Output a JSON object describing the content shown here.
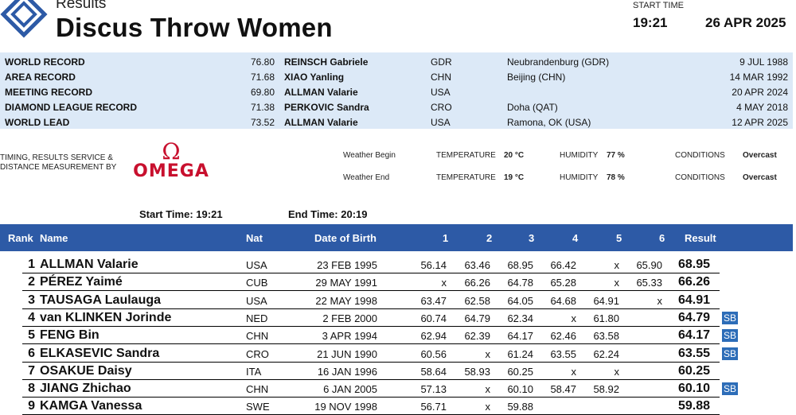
{
  "header": {
    "subtitle": "Results",
    "title": "Discus Throw Women",
    "start_time_label": "START TIME",
    "start_time": "19:21",
    "date": "26 APR 2025"
  },
  "records": [
    {
      "type": "WORLD RECORD",
      "mark": "76.80",
      "athlete": "REINSCH Gabriele",
      "nat": "GDR",
      "venue": "Neubrandenburg (GDR)",
      "date": "9 JUL 1988"
    },
    {
      "type": "AREA RECORD",
      "mark": "71.68",
      "athlete": "XIAO Yanling",
      "nat": "CHN",
      "venue": "Beijing (CHN)",
      "date": "14 MAR 1992"
    },
    {
      "type": "MEETING RECORD",
      "mark": "69.80",
      "athlete": "ALLMAN Valarie",
      "nat": "USA",
      "venue": "",
      "date": "20 APR 2024"
    },
    {
      "type": "DIAMOND LEAGUE RECORD",
      "mark": "71.38",
      "athlete": "PERKOVIC Sandra",
      "nat": "CRO",
      "venue": "Doha (QAT)",
      "date": "4 MAY 2018"
    },
    {
      "type": "WORLD LEAD",
      "mark": "73.52",
      "athlete": "ALLMAN Valarie",
      "nat": "USA",
      "venue": "Ramona, OK (USA)",
      "date": "12 APR 2025"
    }
  ],
  "timing": {
    "text_line1": "TIMING, RESULTS SERVICE &",
    "text_line2": "DISTANCE MEASUREMENT BY",
    "brand_symbol": "Ω",
    "brand_word": "OMEGA",
    "brand_color": "#c8102e"
  },
  "weather": {
    "begin": {
      "label": "Weather Begin",
      "temp_label": "TEMPERATURE",
      "temp": "20 °C",
      "hum_label": "HUMIDITY",
      "hum": "77 %",
      "cond_label": "CONDITIONS",
      "cond": "Overcast"
    },
    "end": {
      "label": "Weather End",
      "temp_label": "TEMPERATURE",
      "temp": "19 °C",
      "hum_label": "HUMIDITY",
      "hum": "78 %",
      "cond_label": "CONDITIONS",
      "cond": "Overcast"
    }
  },
  "times": {
    "start_label": "Start Time:",
    "start": "19:21",
    "end_label": "End Time:",
    "end": "20:19"
  },
  "columns": {
    "rank": "Rank",
    "name": "Name",
    "nat": "Nat",
    "dob": "Date of Birth",
    "a1": "1",
    "a2": "2",
    "a3": "3",
    "a4": "4",
    "a5": "5",
    "a6": "6",
    "result": "Result"
  },
  "results": [
    {
      "rank": "1",
      "name": "ALLMAN Valarie",
      "nat": "USA",
      "dob": "23 FEB 1995",
      "attempts": [
        "56.14",
        "63.46",
        "68.95",
        "66.42",
        "x",
        "65.90"
      ],
      "result": "68.95",
      "note": ""
    },
    {
      "rank": "2",
      "name": "PÉREZ Yaimé",
      "nat": "CUB",
      "dob": "29 MAY 1991",
      "attempts": [
        "x",
        "66.26",
        "64.78",
        "65.28",
        "x",
        "65.33"
      ],
      "result": "66.26",
      "note": ""
    },
    {
      "rank": "3",
      "name": "TAUSAGA Laulauga",
      "nat": "USA",
      "dob": "22 MAY 1998",
      "attempts": [
        "63.47",
        "62.58",
        "64.05",
        "64.68",
        "64.91",
        "x"
      ],
      "result": "64.91",
      "note": ""
    },
    {
      "rank": "4",
      "name": "van KLINKEN Jorinde",
      "nat": "NED",
      "dob": "2 FEB 2000",
      "attempts": [
        "60.74",
        "64.79",
        "62.34",
        "x",
        "61.80",
        ""
      ],
      "result": "64.79",
      "note": "SB"
    },
    {
      "rank": "5",
      "name": "FENG Bin",
      "nat": "CHN",
      "dob": "3 APR 1994",
      "attempts": [
        "62.94",
        "62.39",
        "64.17",
        "62.46",
        "63.58",
        ""
      ],
      "result": "64.17",
      "note": "SB"
    },
    {
      "rank": "6",
      "name": "ELKASEVIC Sandra",
      "nat": "CRO",
      "dob": "21 JUN 1990",
      "attempts": [
        "60.56",
        "x",
        "61.24",
        "63.55",
        "62.24",
        ""
      ],
      "result": "63.55",
      "note": "SB"
    },
    {
      "rank": "7",
      "name": "OSAKUE Daisy",
      "nat": "ITA",
      "dob": "16 JAN 1996",
      "attempts": [
        "58.64",
        "58.93",
        "60.25",
        "x",
        "x",
        ""
      ],
      "result": "60.25",
      "note": ""
    },
    {
      "rank": "8",
      "name": "JIANG Zhichao",
      "nat": "CHN",
      "dob": "6 JAN 2005",
      "attempts": [
        "57.13",
        "x",
        "60.10",
        "58.47",
        "58.92",
        ""
      ],
      "result": "60.10",
      "note": "SB"
    },
    {
      "rank": "9",
      "name": "KAMGA Vanessa",
      "nat": "SWE",
      "dob": "19 NOV 1998",
      "attempts": [
        "56.71",
        "x",
        "59.88",
        "",
        "",
        ""
      ],
      "result": "59.88",
      "note": ""
    }
  ]
}
